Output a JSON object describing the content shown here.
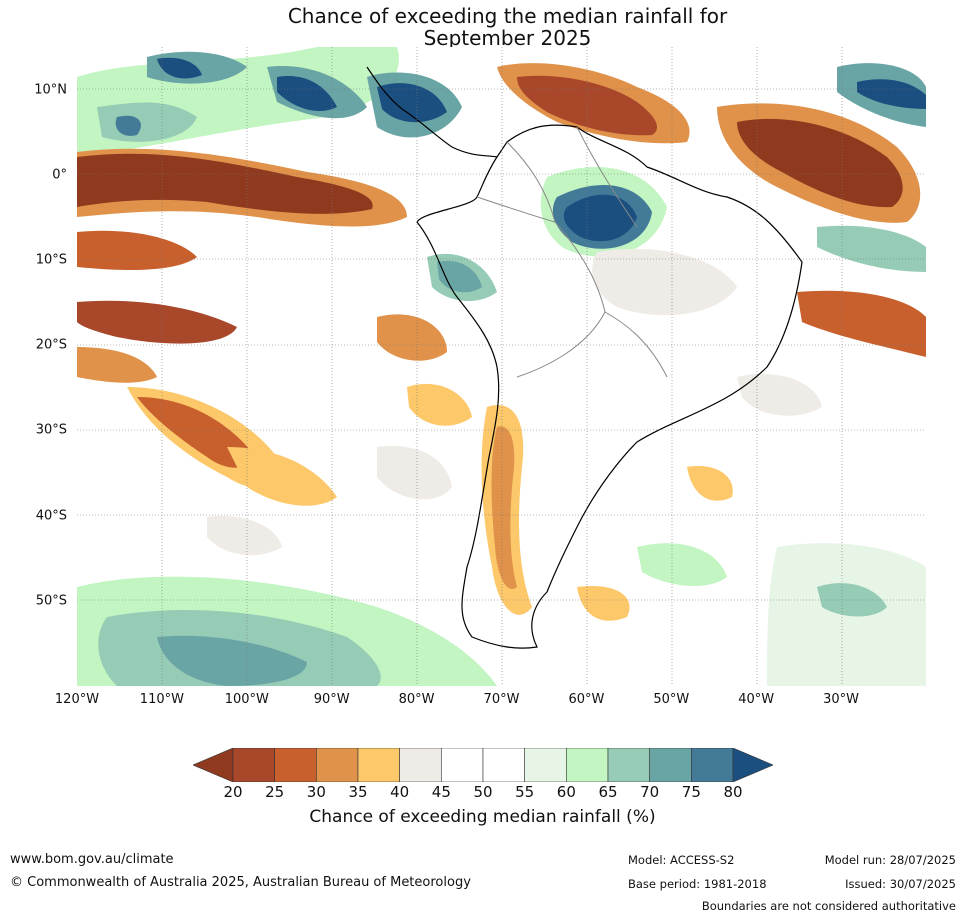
{
  "title_line1": "Chance of exceeding the median rainfall for",
  "title_line2": "September 2025",
  "map": {
    "lat_labels": [
      {
        "text": "10°N",
        "lat": 10
      },
      {
        "text": "0°",
        "lat": 0
      },
      {
        "text": "10°S",
        "lat": -10
      },
      {
        "text": "20°S",
        "lat": -20
      },
      {
        "text": "30°S",
        "lat": -30
      },
      {
        "text": "40°S",
        "lat": -40
      },
      {
        "text": "50°S",
        "lat": -50
      }
    ],
    "lon_labels": [
      {
        "text": "120°W",
        "lon": -120
      },
      {
        "text": "110°W",
        "lon": -110
      },
      {
        "text": "100°W",
        "lon": -100
      },
      {
        "text": "90°W",
        "lon": -90
      },
      {
        "text": "80°W",
        "lon": -80
      },
      {
        "text": "70°W",
        "lon": -70
      },
      {
        "text": "60°W",
        "lon": -60
      },
      {
        "text": "50°W",
        "lon": -50
      },
      {
        "text": "40°W",
        "lon": -40
      },
      {
        "text": "30°W",
        "lon": -30
      }
    ],
    "extent": {
      "lon_min": -120,
      "lon_max": -20,
      "lat_min": -60,
      "lat_max": 15
    }
  },
  "colorbar": {
    "ticks": [
      "20",
      "25",
      "30",
      "35",
      "40",
      "45",
      "50",
      "55",
      "60",
      "65",
      "70",
      "75",
      "80"
    ],
    "colors": [
      "#8f3a1e",
      "#a9472a",
      "#c8602e",
      "#e0924a",
      "#fdc86a",
      "#efebe6",
      "#ffffff",
      "#ffffff",
      "#e6f5e6",
      "#c2f5c2",
      "#96cbb5",
      "#6aa5a6",
      "#437a98",
      "#1a4f80"
    ],
    "label": "Chance of exceeding median rainfall (%)"
  },
  "footer": {
    "website": "www.bom.gov.au/climate",
    "copyright": "© Commonwealth of Australia 2025, Australian Bureau of Meteorology",
    "model": "Model: ACCESS-S2",
    "base_period": "Base period: 1981-2018",
    "model_run": "Model run: 28/07/2025",
    "issued": "Issued: 30/07/2025",
    "disclaimer": "Boundaries are not considered authoritative"
  }
}
